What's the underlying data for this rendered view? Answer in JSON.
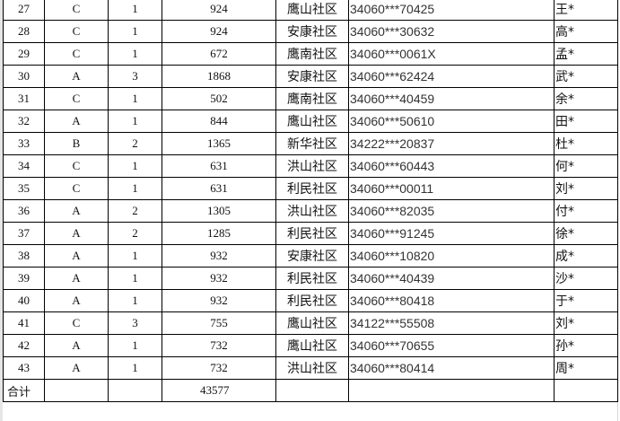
{
  "rows": [
    {
      "no": "27",
      "grade": "C",
      "count": "1",
      "amount": "924",
      "community": "鹰山社区",
      "id": "34060***70425",
      "name": "王*"
    },
    {
      "no": "28",
      "grade": "C",
      "count": "1",
      "amount": "924",
      "community": "安康社区",
      "id": "34060***30632",
      "name": "高*"
    },
    {
      "no": "29",
      "grade": "C",
      "count": "1",
      "amount": "672",
      "community": "鹰南社区",
      "id": "34060***0061X",
      "name": "孟*"
    },
    {
      "no": "30",
      "grade": "A",
      "count": "3",
      "amount": "1868",
      "community": "安康社区",
      "id": "34060***62424",
      "name": "武*"
    },
    {
      "no": "31",
      "grade": "C",
      "count": "1",
      "amount": "502",
      "community": "鹰南社区",
      "id": "34060***40459",
      "name": "余*"
    },
    {
      "no": "32",
      "grade": "A",
      "count": "1",
      "amount": "844",
      "community": "鹰山社区",
      "id": "34060***50610",
      "name": "田*"
    },
    {
      "no": "33",
      "grade": "B",
      "count": "2",
      "amount": "1365",
      "community": "新华社区",
      "id": "34222***20837",
      "name": "杜*"
    },
    {
      "no": "34",
      "grade": "C",
      "count": "1",
      "amount": "631",
      "community": "洪山社区",
      "id": "34060***60443",
      "name": "何*"
    },
    {
      "no": "35",
      "grade": "C",
      "count": "1",
      "amount": "631",
      "community": "利民社区",
      "id": "34060***00011",
      "name": "刘*"
    },
    {
      "no": "36",
      "grade": "A",
      "count": "2",
      "amount": "1305",
      "community": "洪山社区",
      "id": "34060***82035",
      "name": "付*"
    },
    {
      "no": "37",
      "grade": "A",
      "count": "2",
      "amount": "1285",
      "community": "利民社区",
      "id": "34060***91245",
      "name": "徐*"
    },
    {
      "no": "38",
      "grade": "A",
      "count": "1",
      "amount": "932",
      "community": "安康社区",
      "id": "34060***10820",
      "name": "成*"
    },
    {
      "no": "39",
      "grade": "A",
      "count": "1",
      "amount": "932",
      "community": "利民社区",
      "id": "34060***40439",
      "name": "沙*"
    },
    {
      "no": "40",
      "grade": "A",
      "count": "1",
      "amount": "932",
      "community": "利民社区",
      "id": "34060***80418",
      "name": "于*"
    },
    {
      "no": "41",
      "grade": "C",
      "count": "3",
      "amount": "755",
      "community": "鹰山社区",
      "id": "34122***55508",
      "name": "刘*"
    },
    {
      "no": "42",
      "grade": "A",
      "count": "1",
      "amount": "732",
      "community": "鹰山社区",
      "id": "34060***70655",
      "name": "孙*"
    },
    {
      "no": "43",
      "grade": "A",
      "count": "1",
      "amount": "732",
      "community": "洪山社区",
      "id": "34060***80414",
      "name": "周*"
    }
  ],
  "total": {
    "label": "合计",
    "amount": "43577"
  }
}
